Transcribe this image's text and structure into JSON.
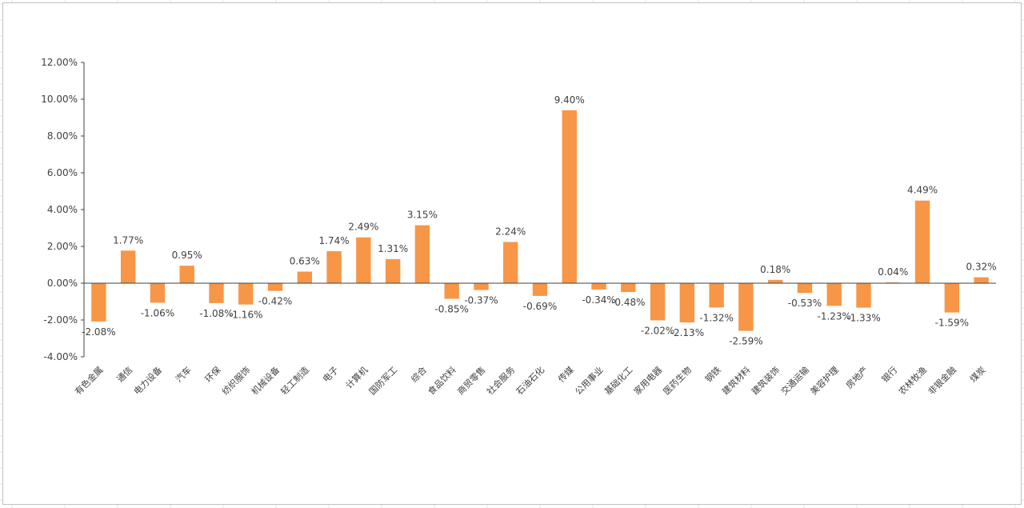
{
  "chart_data": {
    "type": "bar",
    "title": "",
    "xlabel": "",
    "ylabel": "",
    "ylim": [
      -4,
      12
    ],
    "ytick_labels": [
      "-4.00%",
      "-2.00%",
      "0.00%",
      "2.00%",
      "4.00%",
      "6.00%",
      "8.00%",
      "10.00%",
      "12.00%"
    ],
    "ytick_values": [
      -4,
      -2,
      0,
      2,
      4,
      6,
      8,
      10,
      12
    ],
    "grid": false,
    "legend": "none",
    "bar_color": "#F79646",
    "categories": [
      "有色金属",
      "通信",
      "电力设备",
      "汽车",
      "环保",
      "纺织服饰",
      "机械设备",
      "轻工制造",
      "电子",
      "计算机",
      "国防军工",
      "综合",
      "食品饮料",
      "商贸零售",
      "社会服务",
      "石油石化",
      "传媒",
      "公用事业",
      "基础化工",
      "家用电器",
      "医药生物",
      "钢铁",
      "建筑材料",
      "建筑装饰",
      "交通运输",
      "美容护理",
      "房地产",
      "银行",
      "农林牧渔",
      "非银金融",
      "煤炭"
    ],
    "values": [
      -2.08,
      1.77,
      -1.06,
      0.95,
      -1.08,
      -1.16,
      -0.42,
      0.63,
      1.74,
      2.49,
      1.31,
      3.15,
      -0.85,
      -0.37,
      2.24,
      -0.69,
      9.4,
      -0.34,
      -0.48,
      -2.02,
      -2.13,
      -1.32,
      -2.59,
      0.18,
      -0.53,
      -1.23,
      -1.33,
      0.04,
      4.49,
      -1.59,
      0.32
    ],
    "data_labels": [
      "-2.08%",
      "1.77%",
      "-1.06%",
      "0.95%",
      "-1.08%",
      "-1.16%",
      "-0.42%",
      "0.63%",
      "1.74%",
      "2.49%",
      "1.31%",
      "3.15%",
      "-0.85%",
      "-0.37%",
      "2.24%",
      "-0.69%",
      "9.40%",
      "-0.34%",
      "-0.48%",
      "-2.02%",
      "-2.13%",
      "-1.32%",
      "-2.59%",
      "0.18%",
      "-0.53%",
      "-1.23%",
      "-1.33%",
      "0.04%",
      "4.49%",
      "-1.59%",
      "0.32%"
    ]
  }
}
